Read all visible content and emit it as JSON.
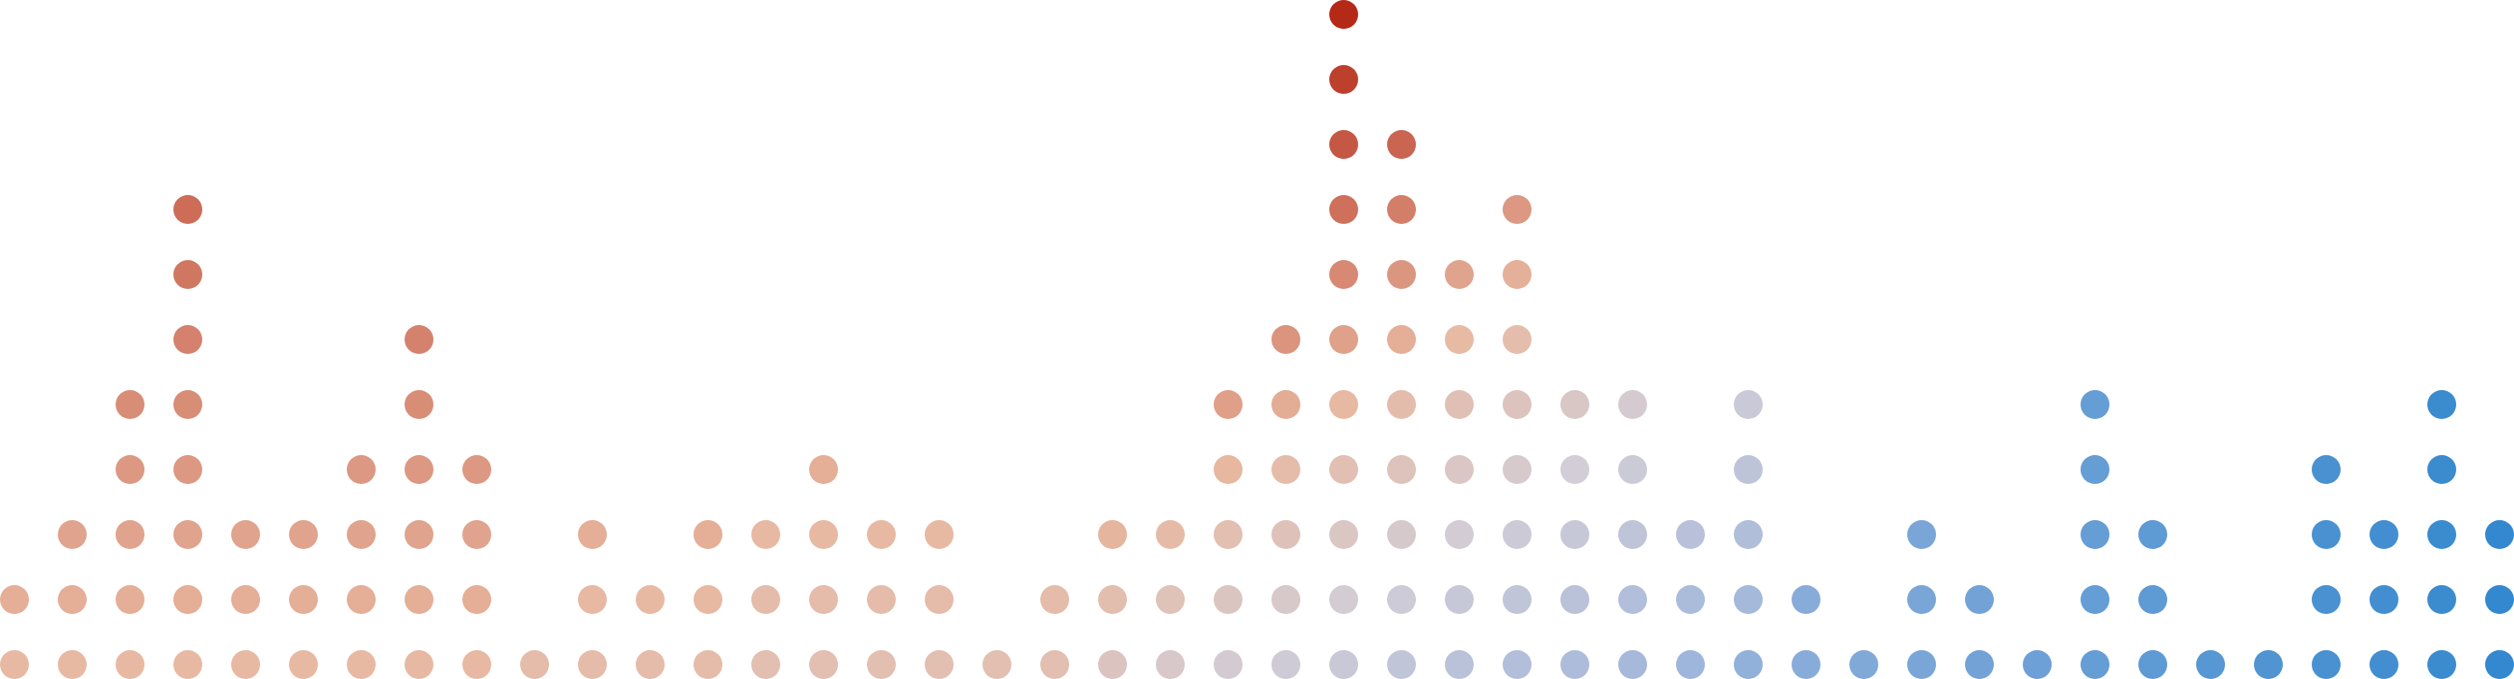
{
  "chart_data": {
    "type": "dot-column",
    "title": "",
    "xlabel": "",
    "ylabel": "",
    "grid": false,
    "legend": "none",
    "counts": [
      2,
      3,
      5,
      8,
      3,
      3,
      4,
      6,
      4,
      1,
      3,
      2,
      3,
      3,
      4,
      3,
      3,
      1,
      2,
      3,
      3,
      5,
      6,
      11,
      9,
      7,
      8,
      5,
      5,
      3,
      5,
      2,
      1,
      3,
      2,
      1,
      5,
      3,
      1,
      1,
      4,
      3,
      5,
      3
    ],
    "ylim": [
      0,
      11
    ],
    "color_scale": {
      "type": "diverging",
      "high": "#b52a17",
      "mid_high": "#e8b9a2",
      "mid": "#d2cdd6",
      "mid_low": "#9fb6dc",
      "low": "#1f7fcc"
    }
  }
}
